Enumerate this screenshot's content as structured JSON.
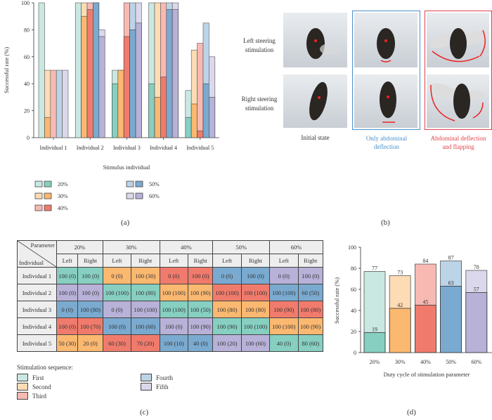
{
  "colors": {
    "20%": {
      "light": "#c9e8e1",
      "dark": "#86cfc1"
    },
    "30%": {
      "light": "#fddcb5",
      "dark": "#fbb870"
    },
    "40%": {
      "light": "#f8b9b3",
      "dark": "#f07b6c"
    },
    "50%": {
      "light": "#bcd4e8",
      "dark": "#7aaad0"
    },
    "60%": {
      "light": "#dcd8ec",
      "dark": "#b8b1d8"
    },
    "blue_frame": "#4a90c8",
    "red_frame": "#e0424a"
  },
  "chart_data": [
    {
      "panel": "(a)",
      "type": "bar",
      "stacked_overlay": true,
      "ylabel": "Successful rate (%)",
      "xlabel": "Stimulus individual",
      "ylim": [
        0,
        100
      ],
      "yticks": [
        0,
        20,
        40,
        60,
        80,
        100
      ],
      "categories": [
        "Individual 1",
        "Individual 2",
        "Individual 3",
        "Individual 4",
        "Individual 5"
      ],
      "series": [
        {
          "name": "20%",
          "total": [
            100,
            100,
            50,
            100,
            35
          ],
          "dark": [
            0,
            0,
            40,
            40,
            15
          ]
        },
        {
          "name": "30%",
          "total": [
            50,
            100,
            50,
            100,
            65
          ],
          "dark": [
            15,
            90,
            50,
            30,
            25
          ]
        },
        {
          "name": "40%",
          "total": [
            50,
            100,
            100,
            100,
            70
          ],
          "dark": [
            0,
            95,
            75,
            45,
            5
          ]
        },
        {
          "name": "50%",
          "total": [
            50,
            100,
            100,
            100,
            85
          ],
          "dark": [
            0,
            100,
            80,
            95,
            40
          ]
        },
        {
          "name": "60%",
          "total": [
            50,
            80,
            100,
            100,
            60
          ],
          "dark": [
            0,
            75,
            85,
            95,
            30
          ]
        }
      ],
      "legend": [
        "20%",
        "30%",
        "40%",
        "50%",
        "60%"
      ],
      "caption": "(a)"
    },
    {
      "panel": "(d)",
      "type": "bar",
      "stacked_overlay": true,
      "ylabel": "Successful rate (%)",
      "xlabel": "Duty cycle of stimulation parameter",
      "ylim": [
        0,
        100
      ],
      "yticks": [
        0,
        20,
        40,
        60,
        80,
        100
      ],
      "categories": [
        "20%",
        "30%",
        "40%",
        "50%",
        "60%"
      ],
      "total": [
        77,
        73,
        84,
        87,
        78
      ],
      "dark": [
        19,
        42,
        45,
        63,
        57
      ],
      "caption": "(d)"
    }
  ],
  "panel_b": {
    "row_labels": [
      "Left steering\nstimulation",
      "Right steering\nstimulation"
    ],
    "columns": [
      "Initial state",
      "Only abdominal\ndeflection",
      "Abdominal deflection\nand flapping"
    ],
    "caption": "(b)"
  },
  "panel_c": {
    "corner_top": "Parameter",
    "corner_bottom": "Individual",
    "parameters": [
      "20%",
      "30%",
      "40%",
      "50%",
      "60%"
    ],
    "sub": [
      "Left",
      "Right"
    ],
    "rows": [
      {
        "name": "Individual 1",
        "sequence": [
          1,
          2,
          3,
          4,
          5
        ],
        "cells": [
          "100 (0)",
          "100 (0)",
          "0 (0)",
          "100 (30)",
          "0 (0)",
          "100 (0)",
          "0 (0)",
          "100 (0)",
          "0 (0)",
          "100 (0)"
        ]
      },
      {
        "name": "Individual 2",
        "sequence": [
          5,
          1,
          2,
          3,
          4
        ],
        "cells": [
          "100 (0)",
          "100 (0)",
          "100 (100)",
          "100 (80)",
          "100 (100)",
          "100 (90)",
          "100 (100)",
          "100 (100)",
          "100 (100)",
          "60 (50)"
        ]
      },
      {
        "name": "Individual 3",
        "sequence": [
          4,
          5,
          1,
          2,
          3
        ],
        "cells": [
          "0 (0)",
          "100 (80)",
          "0 (0)",
          "100 (100)",
          "100 (100)",
          "100 (50)",
          "100 (80)",
          "100 (80)",
          "100 (90)",
          "100 (80)"
        ]
      },
      {
        "name": "Individual 4",
        "sequence": [
          3,
          4,
          5,
          1,
          2
        ],
        "cells": [
          "100 (0)",
          "100 (70)",
          "100 (0)",
          "100 (60)",
          "100 (0)",
          "100 (90)",
          "100 (90)",
          "100 (100)",
          "100 (100)",
          "100 (90)"
        ]
      },
      {
        "name": "Individual 5",
        "sequence": [
          2,
          3,
          4,
          5,
          1
        ],
        "cells": [
          "50 (30)",
          "20 (0)",
          "60 (30)",
          "70 (20)",
          "100 (10)",
          "40 (0)",
          "100 (20)",
          "100 (60)",
          "40 (0)",
          "80 (60)"
        ]
      }
    ],
    "legend_title": "Stimulation sequence:",
    "legend": [
      "First",
      "Second",
      "Third",
      "Fourth",
      "Fifth"
    ],
    "caption": "(c)"
  }
}
